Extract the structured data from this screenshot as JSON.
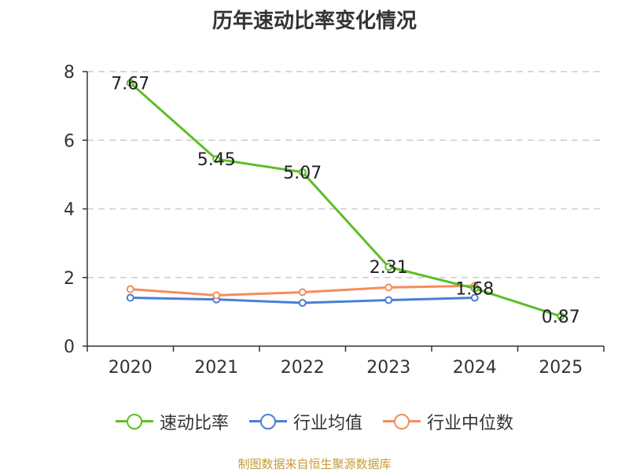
{
  "chart_data": {
    "type": "line",
    "title": "历年速动比率变化情况",
    "categories": [
      "2020",
      "2021",
      "2022",
      "2023",
      "2024",
      "2025"
    ],
    "yticks": [
      "0",
      "2",
      "4",
      "6",
      "8"
    ],
    "ylim": [
      0,
      8
    ],
    "grid": true,
    "legend_position": "bottom",
    "series": [
      {
        "name": "速动比率",
        "color": "#5cbf26",
        "values": [
          7.67,
          5.45,
          5.07,
          2.31,
          1.68,
          0.87
        ],
        "labels": [
          "7.67",
          "5.45",
          "5.07",
          "2.31",
          "1.68",
          "0.87"
        ]
      },
      {
        "name": "行业均值",
        "color": "#4a7fd6",
        "values": [
          1.41,
          1.36,
          1.26,
          1.34,
          1.41,
          null
        ]
      },
      {
        "name": "行业中位数",
        "color": "#f58d5c",
        "values": [
          1.66,
          1.48,
          1.57,
          1.71,
          1.76,
          null
        ]
      }
    ]
  },
  "footer": {
    "source": "制图数据来自恒生聚源数据库"
  }
}
